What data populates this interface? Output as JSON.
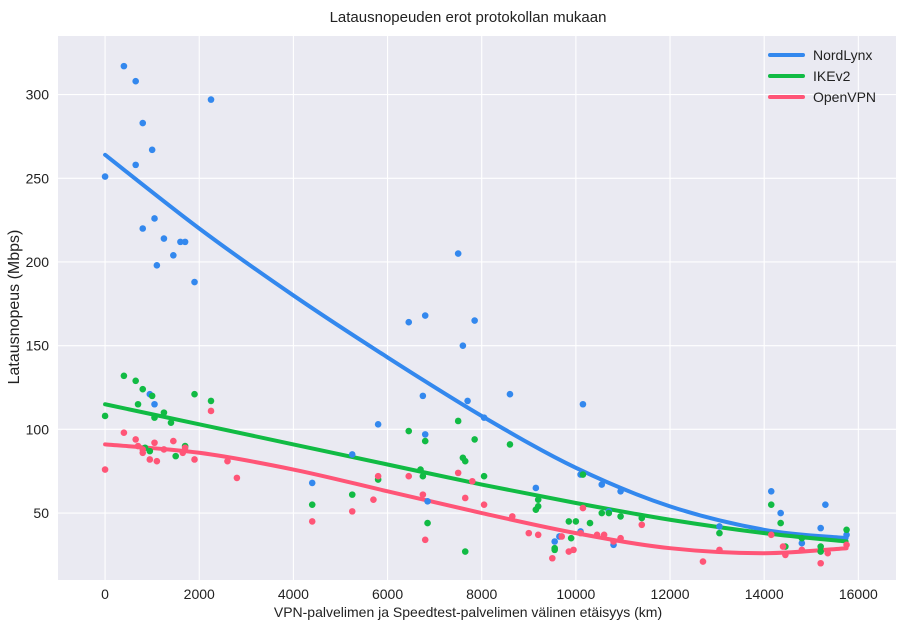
{
  "chart_data": {
    "type": "scatter",
    "title": "Latausnopeuden erot protokollan mukaan",
    "xlabel": "VPN-palvelimen ja Speedtest-palvelimen välinen etäisyys (km)",
    "ylabel": "Latausnopeus (Mbps)",
    "xlim": [
      -1000,
      16800
    ],
    "ylim": [
      10,
      335
    ],
    "xticks": [
      0,
      2000,
      4000,
      6000,
      8000,
      10000,
      12000,
      14000,
      16000
    ],
    "yticks": [
      50,
      100,
      150,
      200,
      250,
      300
    ],
    "grid": true,
    "legend_position": "top-right",
    "series": [
      {
        "name": "NordLynx",
        "color": "#3388ee",
        "points": [
          [
            0,
            251
          ],
          [
            400,
            317
          ],
          [
            650,
            308
          ],
          [
            650,
            258
          ],
          [
            800,
            283
          ],
          [
            800,
            220
          ],
          [
            1000,
            267
          ],
          [
            1050,
            226
          ],
          [
            1100,
            198
          ],
          [
            1250,
            214
          ],
          [
            1450,
            204
          ],
          [
            1600,
            212
          ],
          [
            1700,
            212
          ],
          [
            1900,
            188
          ],
          [
            2250,
            297
          ],
          [
            950,
            121
          ],
          [
            1050,
            115
          ],
          [
            4400,
            68
          ],
          [
            5250,
            85
          ],
          [
            5800,
            103
          ],
          [
            6450,
            164
          ],
          [
            6750,
            120
          ],
          [
            6800,
            168
          ],
          [
            6800,
            97
          ],
          [
            6850,
            57
          ],
          [
            7500,
            205
          ],
          [
            7600,
            150
          ],
          [
            7700,
            117
          ],
          [
            7850,
            165
          ],
          [
            8050,
            107
          ],
          [
            8600,
            121
          ],
          [
            9150,
            65
          ],
          [
            9550,
            33
          ],
          [
            9650,
            36
          ],
          [
            10100,
            73
          ],
          [
            10100,
            39
          ],
          [
            10150,
            115
          ],
          [
            10550,
            67
          ],
          [
            10700,
            51
          ],
          [
            10800,
            31
          ],
          [
            10950,
            63
          ],
          [
            13050,
            42
          ],
          [
            14150,
            63
          ],
          [
            14350,
            50
          ],
          [
            14800,
            32
          ],
          [
            15200,
            41
          ],
          [
            15300,
            55
          ],
          [
            15750,
            37
          ]
        ],
        "fit": [
          [
            0,
            264
          ],
          [
            2000,
            220
          ],
          [
            4000,
            180
          ],
          [
            6000,
            143
          ],
          [
            8000,
            108
          ],
          [
            10000,
            77
          ],
          [
            12000,
            54
          ],
          [
            14000,
            40
          ],
          [
            15750,
            35
          ]
        ]
      },
      {
        "name": "IKEv2",
        "color": "#11bb44",
        "points": [
          [
            0,
            108
          ],
          [
            400,
            132
          ],
          [
            650,
            129
          ],
          [
            700,
            115
          ],
          [
            800,
            124
          ],
          [
            850,
            89
          ],
          [
            950,
            87
          ],
          [
            1000,
            120
          ],
          [
            1050,
            107
          ],
          [
            1250,
            110
          ],
          [
            1400,
            104
          ],
          [
            1500,
            84
          ],
          [
            1700,
            90
          ],
          [
            1900,
            121
          ],
          [
            2250,
            117
          ],
          [
            4400,
            55
          ],
          [
            5250,
            61
          ],
          [
            5800,
            70
          ],
          [
            6450,
            99
          ],
          [
            6700,
            76
          ],
          [
            6750,
            72
          ],
          [
            6800,
            93
          ],
          [
            6850,
            44
          ],
          [
            7500,
            105
          ],
          [
            7600,
            83
          ],
          [
            7650,
            81
          ],
          [
            7650,
            27
          ],
          [
            7850,
            94
          ],
          [
            8050,
            72
          ],
          [
            8600,
            91
          ],
          [
            9150,
            52
          ],
          [
            9200,
            54
          ],
          [
            9200,
            58
          ],
          [
            9550,
            29
          ],
          [
            9550,
            28
          ],
          [
            9850,
            45
          ],
          [
            9900,
            35
          ],
          [
            10000,
            45
          ],
          [
            10150,
            73
          ],
          [
            10300,
            44
          ],
          [
            10550,
            50
          ],
          [
            10700,
            50
          ],
          [
            10950,
            48
          ],
          [
            11400,
            47
          ],
          [
            13050,
            38
          ],
          [
            14150,
            55
          ],
          [
            14350,
            44
          ],
          [
            14450,
            30
          ],
          [
            14800,
            35
          ],
          [
            15200,
            27
          ],
          [
            15200,
            30
          ],
          [
            15750,
            40
          ]
        ],
        "fit": [
          [
            0,
            115
          ],
          [
            2000,
            103
          ],
          [
            4000,
            91
          ],
          [
            6000,
            79
          ],
          [
            8000,
            67
          ],
          [
            10000,
            56
          ],
          [
            12000,
            46
          ],
          [
            14000,
            38
          ],
          [
            15750,
            33
          ]
        ]
      },
      {
        "name": "OpenVPN",
        "color": "#ff5577",
        "points": [
          [
            0,
            76
          ],
          [
            400,
            98
          ],
          [
            650,
            94
          ],
          [
            700,
            90
          ],
          [
            800,
            88
          ],
          [
            800,
            86
          ],
          [
            950,
            82
          ],
          [
            1050,
            92
          ],
          [
            1100,
            81
          ],
          [
            1250,
            88
          ],
          [
            1450,
            93
          ],
          [
            1650,
            86
          ],
          [
            1700,
            89
          ],
          [
            1900,
            82
          ],
          [
            2250,
            111
          ],
          [
            2600,
            81
          ],
          [
            2800,
            71
          ],
          [
            4400,
            45
          ],
          [
            5250,
            51
          ],
          [
            5700,
            58
          ],
          [
            5800,
            72
          ],
          [
            6450,
            72
          ],
          [
            6750,
            61
          ],
          [
            6800,
            34
          ],
          [
            7500,
            74
          ],
          [
            7650,
            59
          ],
          [
            7800,
            69
          ],
          [
            8050,
            55
          ],
          [
            8650,
            48
          ],
          [
            9000,
            38
          ],
          [
            9200,
            37
          ],
          [
            9500,
            23
          ],
          [
            9700,
            36
          ],
          [
            9850,
            27
          ],
          [
            9950,
            28
          ],
          [
            10100,
            38
          ],
          [
            10150,
            53
          ],
          [
            10450,
            37
          ],
          [
            10600,
            37
          ],
          [
            10800,
            33
          ],
          [
            10950,
            35
          ],
          [
            11400,
            43
          ],
          [
            12700,
            21
          ],
          [
            13050,
            28
          ],
          [
            14150,
            37
          ],
          [
            14400,
            30
          ],
          [
            14450,
            25
          ],
          [
            14800,
            28
          ],
          [
            15200,
            20
          ],
          [
            15350,
            26
          ],
          [
            15750,
            31
          ]
        ],
        "fit": [
          [
            0,
            91
          ],
          [
            2000,
            86
          ],
          [
            4000,
            76
          ],
          [
            6000,
            63
          ],
          [
            8000,
            50
          ],
          [
            10000,
            38
          ],
          [
            12000,
            29
          ],
          [
            14000,
            26
          ],
          [
            15750,
            29
          ]
        ]
      }
    ]
  }
}
